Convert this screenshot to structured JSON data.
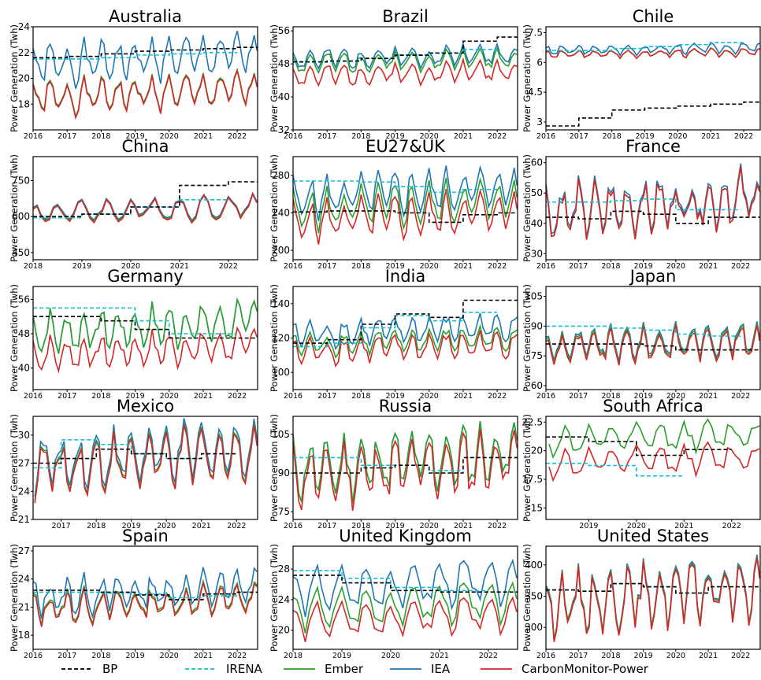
{
  "colors": {
    "BP": "#000000",
    "IRENA": "#17becf",
    "Ember": "#2ca02c",
    "IEA": "#1f77b4",
    "CarbonMonitor-Power": "#d62728"
  },
  "legend": [
    "BP",
    "IRENA",
    "Ember",
    "IEA",
    "CarbonMonitor-Power"
  ],
  "chart_data": [
    {
      "type": "line",
      "title": "Australia",
      "ylabel": "Power Generation (Twh)",
      "xlim": [
        2016,
        2022.6
      ],
      "ylim": [
        16,
        24
      ],
      "yticks": [
        18,
        20,
        22,
        24
      ],
      "xticks": [
        2016,
        2017,
        2018,
        2019,
        2020,
        2021,
        2022
      ],
      "pattern": {
        "IEA": {
          "mean": 21,
          "amp": 1.6
        },
        "Ember": {
          "mean": 18.5,
          "amp": 1.3
        },
        "CarbonMonitor-Power": {
          "mean": 18.4,
          "amp": 1.3
        }
      },
      "step": {
        "BP": [
          21.6,
          21.7,
          21.9,
          22.1,
          22.2,
          22.3,
          22.4
        ],
        "IRENA": [
          21.5,
          21.5,
          21.6,
          21.8,
          21.9,
          22.0
        ]
      }
    },
    {
      "type": "line",
      "title": "Brazil",
      "ylabel": "Power Generation (Twh)",
      "xlim": [
        2016,
        2022.6
      ],
      "ylim": [
        32,
        57
      ],
      "yticks": [
        32,
        40,
        48,
        56
      ],
      "xticks": [
        2016,
        2017,
        2018,
        2019,
        2020,
        2021,
        2022
      ],
      "pattern": {
        "IEA": {
          "mean": 49,
          "amp": 2.5
        },
        "Ember": {
          "mean": 48,
          "amp": 2.5
        },
        "CarbonMonitor-Power": {
          "mean": 45,
          "amp": 2.6
        }
      },
      "step": {
        "BP": [
          48.5,
          48.7,
          49.3,
          50.1,
          50.6,
          53.5,
          54.5
        ],
        "IRENA": [
          48.4,
          48.6,
          49.4,
          50.2,
          50.7,
          51.5
        ]
      }
    },
    {
      "type": "line",
      "title": "Chile",
      "ylabel": "Power Generation (Twh)",
      "xlim": [
        2016,
        2022.5
      ],
      "ylim": [
        2.6,
        7.8
      ],
      "yticks": [
        3.0,
        4.5,
        6.0,
        7.5
      ],
      "xticks": [
        2016,
        2017,
        2018,
        2019,
        2020,
        2021,
        2022
      ],
      "pattern": {
        "IEA": {
          "mean": 6.6,
          "amp": 0.25
        },
        "Ember": {
          "mean": 6.4,
          "amp": 0.2
        },
        "CarbonMonitor-Power": {
          "mean": 6.4,
          "amp": 0.2
        }
      },
      "step": {
        "BP": [
          2.8,
          3.2,
          3.6,
          3.7,
          3.8,
          3.9,
          4.0
        ],
        "IRENA": [
          6.6,
          6.6,
          6.7,
          6.8,
          6.9,
          7.0
        ]
      }
    },
    {
      "type": "line",
      "title": "China",
      "ylabel": "Power Generation (Twh)",
      "xlim": [
        2018,
        2022.6
      ],
      "ylim": [
        420,
        850
      ],
      "yticks": [
        450,
        600,
        750
      ],
      "xticks": [
        2018,
        2019,
        2020,
        2021,
        2022
      ],
      "pattern": {
        "IEA": {
          "mean": 620,
          "amp": 45
        },
        "Ember": {
          "mean": 615,
          "amp": 45
        },
        "CarbonMonitor-Power": {
          "mean": 612,
          "amp": 48
        }
      },
      "step": {
        "BP": [
          600,
          610,
          640,
          730,
          745
        ],
        "IRENA": [
          595,
          610,
          640,
          670
        ]
      }
    },
    {
      "type": "line",
      "title": "EU27&UK",
      "ylabel": "Power Generation (Twh)",
      "xlim": [
        2016,
        2022.6
      ],
      "ylim": [
        190,
        300
      ],
      "yticks": [
        200,
        240,
        280
      ],
      "xticks": [
        2016,
        2017,
        2018,
        2019,
        2020,
        2021,
        2022
      ],
      "pattern": {
        "IEA": {
          "mean": 255,
          "amp": 22
        },
        "Ember": {
          "mean": 242,
          "amp": 22
        },
        "CarbonMonitor-Power": {
          "mean": 230,
          "amp": 22
        }
      },
      "step": {
        "BP": [
          241,
          242,
          242,
          240,
          230,
          238,
          240
        ],
        "IRENA": [
          274,
          274,
          273,
          268,
          262,
          265
        ]
      }
    },
    {
      "type": "line",
      "title": "France",
      "ylabel": "Power Generation (Twh)",
      "xlim": [
        2016,
        2022.6
      ],
      "ylim": [
        28,
        62
      ],
      "yticks": [
        30,
        40,
        50,
        60
      ],
      "xticks": [
        2016,
        2017,
        2018,
        2019,
        2020,
        2021,
        2022
      ],
      "pattern": {
        "IEA": {
          "mean": 44,
          "amp": 9
        },
        "Ember": {
          "mean": 43,
          "amp": 9
        },
        "CarbonMonitor-Power": {
          "mean": 43,
          "amp": 9
        }
      },
      "step": {
        "BP": [
          42,
          41.5,
          44,
          43,
          40,
          42,
          42
        ],
        "IRENA": [
          47,
          47,
          47.5,
          48,
          44.5,
          44.5
        ]
      }
    },
    {
      "type": "line",
      "title": "Germany",
      "ylabel": "Power Generation (Twh)",
      "xlim": [
        2016,
        2022.6
      ],
      "ylim": [
        35,
        59
      ],
      "yticks": [
        40,
        48,
        56
      ],
      "xticks": [
        2016,
        2017,
        2018,
        2019,
        2020,
        2021,
        2022
      ],
      "pattern": {
        "IEA": {
          "mean": 48,
          "amp": 5
        },
        "Ember": {
          "mean": 48,
          "amp": 5
        },
        "CarbonMonitor-Power": {
          "mean": 43,
          "amp": 4
        }
      },
      "step": {
        "BP": [
          52,
          52,
          51,
          49,
          47,
          47,
          47
        ],
        "IRENA": [
          54,
          54,
          54,
          51,
          48,
          48
        ]
      }
    },
    {
      "type": "line",
      "title": "India",
      "ylabel": "Power Generation (Twh)",
      "xlim": [
        2016,
        2022.6
      ],
      "ylim": [
        90,
        150
      ],
      "yticks": [
        100,
        120,
        140
      ],
      "xticks": [
        2016,
        2017,
        2018,
        2019,
        2020,
        2021,
        2022
      ],
      "pattern": {
        "IEA": {
          "mean": 122,
          "amp": 8
        },
        "Ember": {
          "mean": 116,
          "amp": 7
        },
        "CarbonMonitor-Power": {
          "mean": 112,
          "amp": 8
        }
      },
      "step": {
        "BP": [
          117,
          119,
          128,
          134,
          132,
          142,
          142
        ],
        "IRENA": [
          115,
          117,
          126,
          133,
          130,
          135
        ]
      }
    },
    {
      "type": "line",
      "title": "Japan",
      "ylabel": "Power Generation (Twh)",
      "xlim": [
        2016,
        2022.6
      ],
      "ylim": [
        58,
        110
      ],
      "yticks": [
        60,
        75,
        90,
        105
      ],
      "xticks": [
        2016,
        2017,
        2018,
        2019,
        2020,
        2021,
        2022
      ],
      "pattern": {
        "IEA": {
          "mean": 80,
          "amp": 8
        },
        "Ember": {
          "mean": 79,
          "amp": 8
        },
        "CarbonMonitor-Power": {
          "mean": 78,
          "amp": 8
        }
      },
      "step": {
        "BP": [
          81,
          81,
          81,
          80,
          78,
          78,
          78
        ],
        "IRENA": [
          90,
          90,
          89,
          88,
          86,
          85
        ]
      }
    },
    {
      "type": "line",
      "title": "Mexico",
      "ylabel": "Power Generation (Twh)",
      "xlim": [
        2016.2,
        2022.6
      ],
      "ylim": [
        21,
        32
      ],
      "yticks": [
        21,
        24,
        27,
        30
      ],
      "xticks": [
        2017,
        2018,
        2019,
        2020,
        2021,
        2022
      ],
      "pattern": {
        "IEA": {
          "mean": 27,
          "amp": 3
        },
        "Ember": {
          "mean": 26.5,
          "amp": 3
        },
        "CarbonMonitor-Power": {
          "mean": 26.3,
          "amp": 3
        }
      },
      "step": {
        "BP": [
          27,
          27.5,
          28.5,
          28,
          27.5,
          28
        ],
        "IRENA": [
          26.5,
          29.5,
          29,
          28,
          27.5
        ]
      }
    },
    {
      "type": "line",
      "title": "Russia",
      "ylabel": "Power Generation (Twh)",
      "xlim": [
        2016,
        2022.6
      ],
      "ylim": [
        72,
        112
      ],
      "yticks": [
        75,
        90,
        105
      ],
      "xticks": [
        2016,
        2017,
        2018,
        2019,
        2020,
        2021,
        2022
      ],
      "pattern": {
        "IEA": {
          "mean": 91,
          "amp": 12
        },
        "Ember": {
          "mean": 91,
          "amp": 12
        },
        "CarbonMonitor-Power": {
          "mean": 88,
          "amp": 12
        }
      },
      "step": {
        "BP": [
          90,
          90,
          92,
          93,
          90,
          96,
          96
        ],
        "IRENA": [
          96,
          96,
          93,
          93,
          91
        ]
      }
    },
    {
      "type": "line",
      "title": "South Africa",
      "ylabel": "Power Generation (Twh)",
      "xlim": [
        2018.1,
        2022.6
      ],
      "ylim": [
        14,
        23
      ],
      "yticks": [
        15.0,
        17.5,
        20.0,
        22.5
      ],
      "xticks": [
        2019,
        2020,
        2021,
        2022
      ],
      "pattern": {
        "IEA": {
          "mean": 0,
          "amp": 0
        },
        "Ember": {
          "mean": 20.8,
          "amp": 1.2
        },
        "CarbonMonitor-Power": {
          "mean": 18.8,
          "amp": 1.2
        }
      },
      "step": {
        "BP": [
          21.2,
          20.8,
          19.6,
          20.1
        ],
        "IRENA": [
          18.9,
          18.7,
          17.8
        ]
      }
    },
    {
      "type": "line",
      "title": "Spain",
      "ylabel": "Power Generation (Twh)",
      "xlim": [
        2016,
        2022.6
      ],
      "ylim": [
        16.5,
        27.5
      ],
      "yticks": [
        18,
        21,
        24,
        27
      ],
      "xticks": [
        2016,
        2017,
        2018,
        2019,
        2020,
        2021,
        2022
      ],
      "pattern": {
        "IEA": {
          "mean": 22,
          "amp": 2
        },
        "Ember": {
          "mean": 21,
          "amp": 1.7
        },
        "CarbonMonitor-Power": {
          "mean": 20.8,
          "amp": 1.7
        }
      },
      "step": {
        "BP": [
          22.8,
          22.8,
          22.6,
          22.3,
          21.8,
          22.4,
          22.6
        ],
        "IRENA": [
          22.6,
          22.6,
          22.5,
          22.4,
          22.0,
          22.2
        ]
      }
    },
    {
      "type": "line",
      "title": "United Kingdom",
      "ylabel": "Power Generation (Twh)",
      "xlim": [
        2018,
        2022.6
      ],
      "ylim": [
        17.5,
        31
      ],
      "yticks": [
        20,
        24,
        28
      ],
      "xticks": [
        2018,
        2019,
        2020,
        2021,
        2022
      ],
      "pattern": {
        "IEA": {
          "mean": 25,
          "amp": 2.8
        },
        "Ember": {
          "mean": 22.5,
          "amp": 2.5
        },
        "CarbonMonitor-Power": {
          "mean": 21,
          "amp": 2.2
        }
      },
      "step": {
        "BP": [
          27.2,
          26.2,
          25.2,
          25.0,
          25.0
        ],
        "IRENA": [
          27.8,
          26.8,
          25.6,
          25.2
        ]
      }
    },
    {
      "type": "line",
      "title": "United States",
      "ylabel": "Power Generation (Twh)",
      "xlim": [
        2016,
        2022.6
      ],
      "ylim": [
        265,
        430
      ],
      "yticks": [
        300,
        350,
        400
      ],
      "xticks": [
        2016,
        2017,
        2018,
        2019,
        2020,
        2021,
        2022
      ],
      "pattern": {
        "IEA": {
          "mean": 340,
          "amp": 48
        },
        "Ember": {
          "mean": 338,
          "amp": 47
        },
        "CarbonMonitor-Power": {
          "mean": 335,
          "amp": 48
        }
      },
      "step": {
        "BP": [
          360,
          358,
          370,
          365,
          355,
          365,
          365
        ],
        "IRENA": [
          360,
          358,
          370,
          365,
          355
        ]
      }
    }
  ]
}
